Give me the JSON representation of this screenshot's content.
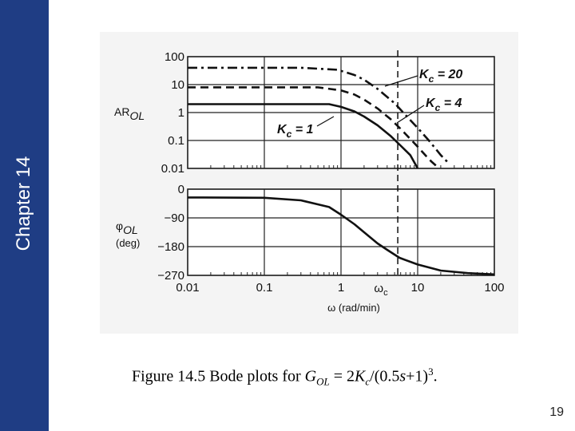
{
  "slide": {
    "chapter": "Chapter 14",
    "page_number": "19",
    "colors": {
      "sidebar": "#1f3d84",
      "figure_bg": "#f4f4f4"
    }
  },
  "caption": {
    "prefix": "Figure 14.5 Bode plots for ",
    "G": "G",
    "G_sub": "OL",
    "middle": " = 2",
    "K": "K",
    "K_sub": "c",
    "expr_a": "/(0.5",
    "s": "s",
    "expr_b": "+1)",
    "power": "3",
    "suffix": "."
  },
  "chart_data": [
    {
      "type": "line",
      "log_y": true,
      "ylabel_main": "AR",
      "ylabel_sub": "OL",
      "ytick_labels": [
        "100",
        "10",
        "1",
        "0.1",
        "0.01"
      ],
      "yticks": [
        100,
        10,
        1,
        0.1,
        0.01
      ],
      "series": [
        {
          "name": "Kc = 20",
          "label_main": "K",
          "label_sub": "c",
          "label_rest": " = 20",
          "line_style": "dash-dot",
          "points": [
            [
              0.01,
              40
            ],
            [
              0.3,
              40
            ],
            [
              0.9,
              34
            ],
            [
              1.5,
              22
            ],
            [
              2,
              15
            ],
            [
              3,
              7
            ],
            [
              5,
              2.16
            ],
            [
              7,
              0.8
            ],
            [
              10,
              0.28
            ],
            [
              14,
              0.1
            ],
            [
              20,
              0.03
            ],
            [
              25,
              0.016
            ]
          ]
        },
        {
          "name": "Kc = 4",
          "label_main": "K",
          "label_sub": "c",
          "label_rest": " = 4",
          "line_style": "dashed",
          "points": [
            [
              0.01,
              8
            ],
            [
              0.5,
              8
            ],
            [
              1,
              6.2
            ],
            [
              1.5,
              4.4
            ],
            [
              2,
              2.9
            ],
            [
              3,
              1.4
            ],
            [
              4.5,
              0.56
            ],
            [
              6,
              0.26
            ],
            [
              10,
              0.06
            ],
            [
              13,
              0.027
            ],
            [
              15,
              0.018
            ],
            [
              19,
              0.01
            ]
          ]
        },
        {
          "name": "Kc = 1",
          "label_main": "K",
          "label_sub": "c",
          "label_rest": " = 1",
          "line_style": "solid",
          "points": [
            [
              0.01,
              2
            ],
            [
              0.7,
              2
            ],
            [
              1,
              1.6
            ],
            [
              1.5,
              1.1
            ],
            [
              2,
              0.72
            ],
            [
              3,
              0.35
            ],
            [
              4.5,
              0.14
            ],
            [
              6,
              0.065
            ],
            [
              8,
              0.03
            ],
            [
              10,
              0.01
            ]
          ]
        }
      ],
      "crossover_line_at": 5.5
    },
    {
      "type": "line",
      "ylabel_main": "φ",
      "ylabel_sub": "OL",
      "ylabel_unit": "(deg)",
      "ytick_labels": [
        "0",
        "−90",
        "−180",
        "−270"
      ],
      "yticks": [
        0,
        -90,
        -180,
        -270
      ],
      "xtick_labels": [
        "0.01",
        "0.1",
        "1",
        "10",
        "100"
      ],
      "xticks": [
        0.01,
        0.1,
        1,
        10,
        100
      ],
      "omega_c_label_main": "ω",
      "omega_c_label_sub": "c",
      "xlabel": "ω (rad/min)",
      "series": [
        {
          "line_style": "solid",
          "points": [
            [
              0.01,
              -26
            ],
            [
              0.1,
              -27
            ],
            [
              0.3,
              -35
            ],
            [
              0.7,
              -56
            ],
            [
              1,
              -80
            ],
            [
              1.5,
              -110
            ],
            [
              2,
              -135
            ],
            [
              3,
              -170
            ],
            [
              4,
              -190
            ],
            [
              5.8,
              -215
            ],
            [
              10,
              -236
            ],
            [
              20,
              -255
            ],
            [
              45,
              -263
            ],
            [
              100,
              -267
            ]
          ]
        }
      ]
    }
  ]
}
